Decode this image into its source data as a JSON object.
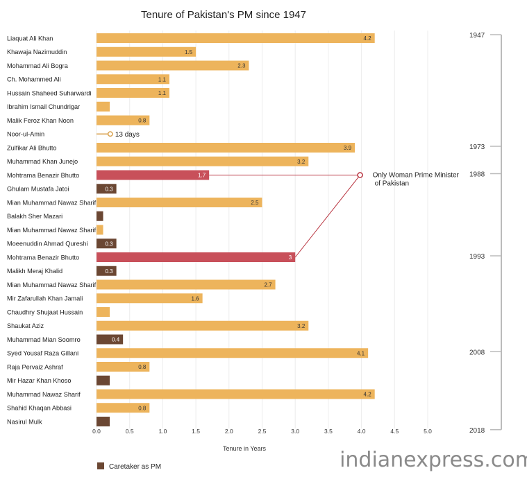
{
  "chart_data": {
    "type": "bar",
    "orientation": "horizontal",
    "title": "Tenure of Pakistan's PM since 1947",
    "xlabel": "Tenure in Years",
    "xlim": [
      0,
      5.0
    ],
    "xticks": [
      "0.0",
      "0.5",
      "1.0",
      "1.5",
      "2.0",
      "2.5",
      "3.0",
      "3.5",
      "4.0",
      "4.5",
      "5.0"
    ],
    "grid": "vertical",
    "colors": {
      "regular": "#EDB45C",
      "woman": "#C8505A",
      "caretaker": "#6B4733"
    },
    "bars": [
      {
        "name": "Liaquat Ali Khan",
        "value": 4.2,
        "label": "4.2",
        "category": "regular"
      },
      {
        "name": "Khawaja Nazimuddin",
        "value": 1.5,
        "label": "1.5",
        "category": "regular"
      },
      {
        "name": "Mohammad Ali Bogra",
        "value": 2.3,
        "label": "2.3",
        "category": "regular"
      },
      {
        "name": "Ch. Mohammed Ali",
        "value": 1.1,
        "label": "1.1",
        "category": "regular"
      },
      {
        "name": "Hussain Shaheed Suharwardi",
        "value": 1.1,
        "label": "1.1",
        "category": "regular"
      },
      {
        "name": "Ibrahim Ismail Chundrigar",
        "value": 0.2,
        "label": "",
        "category": "regular"
      },
      {
        "name": "Malik Feroz Khan Noon",
        "value": 0.8,
        "label": "0.8",
        "category": "regular"
      },
      {
        "name": "Noor-ul-Amin",
        "value": 0.04,
        "label": "13 days",
        "category": "marker"
      },
      {
        "name": "Zulfikar Ali Bhutto",
        "value": 3.9,
        "label": "3.9",
        "category": "regular"
      },
      {
        "name": "Muhammad Khan Junejo",
        "value": 3.2,
        "label": "3.2",
        "category": "regular"
      },
      {
        "name": "Mohtrama Benazir Bhutto",
        "value": 1.7,
        "label": "1.7",
        "category": "woman"
      },
      {
        "name": "Ghulam Mustafa Jatoi",
        "value": 0.3,
        "label": "0.3",
        "category": "caretaker"
      },
      {
        "name": "Mian Muhammad Nawaz Sharif",
        "value": 2.5,
        "label": "2.5",
        "category": "regular"
      },
      {
        "name": "Balakh Sher Mazari",
        "value": 0.1,
        "label": "",
        "category": "caretaker"
      },
      {
        "name": "Mian Muhammad Nawaz Sharif",
        "value": 0.1,
        "label": "",
        "category": "regular"
      },
      {
        "name": "Moeenuddin Ahmad Qureshi",
        "value": 0.3,
        "label": "0.3",
        "category": "caretaker"
      },
      {
        "name": "Mohtrama Benazir Bhutto",
        "value": 3.0,
        "label": "3",
        "category": "woman"
      },
      {
        "name": "Malikh Meraj Khalid",
        "value": 0.3,
        "label": "0.3",
        "category": "caretaker"
      },
      {
        "name": "Mian Muhammad Nawaz Sharif",
        "value": 2.7,
        "label": "2.7",
        "category": "regular"
      },
      {
        "name": "Mir Zafarullah Khan Jamali",
        "value": 1.6,
        "label": "1.6",
        "category": "regular"
      },
      {
        "name": "Chaudhry Shujaat Hussain",
        "value": 0.2,
        "label": "",
        "category": "regular"
      },
      {
        "name": "Shaukat Aziz",
        "value": 3.2,
        "label": "3.2",
        "category": "regular"
      },
      {
        "name": "Muhammad Mian Soomro",
        "value": 0.4,
        "label": "0.4",
        "category": "caretaker"
      },
      {
        "name": "Syed Yousaf Raza Gillani",
        "value": 4.1,
        "label": "4.1",
        "category": "regular"
      },
      {
        "name": "Raja Pervaiz Ashraf",
        "value": 0.8,
        "label": "0.8",
        "category": "regular"
      },
      {
        "name": "Mir Hazar Khan Khoso",
        "value": 0.2,
        "label": "",
        "category": "caretaker"
      },
      {
        "name": "Muhammad Nawaz Sharif",
        "value": 4.2,
        "label": "4.2",
        "category": "regular"
      },
      {
        "name": "Shahid Khaqan Abbasi",
        "value": 0.8,
        "label": "0.8",
        "category": "regular"
      },
      {
        "name": "Nasirul Mulk",
        "value": 0.2,
        "label": "",
        "category": "caretaker"
      }
    ],
    "annotation": {
      "lines": [
        "Only Woman Prime Minister",
        "of Pakistan"
      ],
      "points_to_rows": [
        10,
        16
      ],
      "anchor_value": 4.0
    },
    "timeline": [
      {
        "year": "1947",
        "row": 0
      },
      {
        "year": "1973",
        "row": 8
      },
      {
        "year": "1988",
        "row": 10
      },
      {
        "year": "1993",
        "row": 16
      },
      {
        "year": "2008",
        "row": 23
      },
      {
        "year": "2018",
        "row": 29
      }
    ],
    "legend": {
      "label": "Caretaker as PM",
      "category": "caretaker",
      "position": "bottom-left"
    }
  },
  "watermark": "indianexpress.com"
}
